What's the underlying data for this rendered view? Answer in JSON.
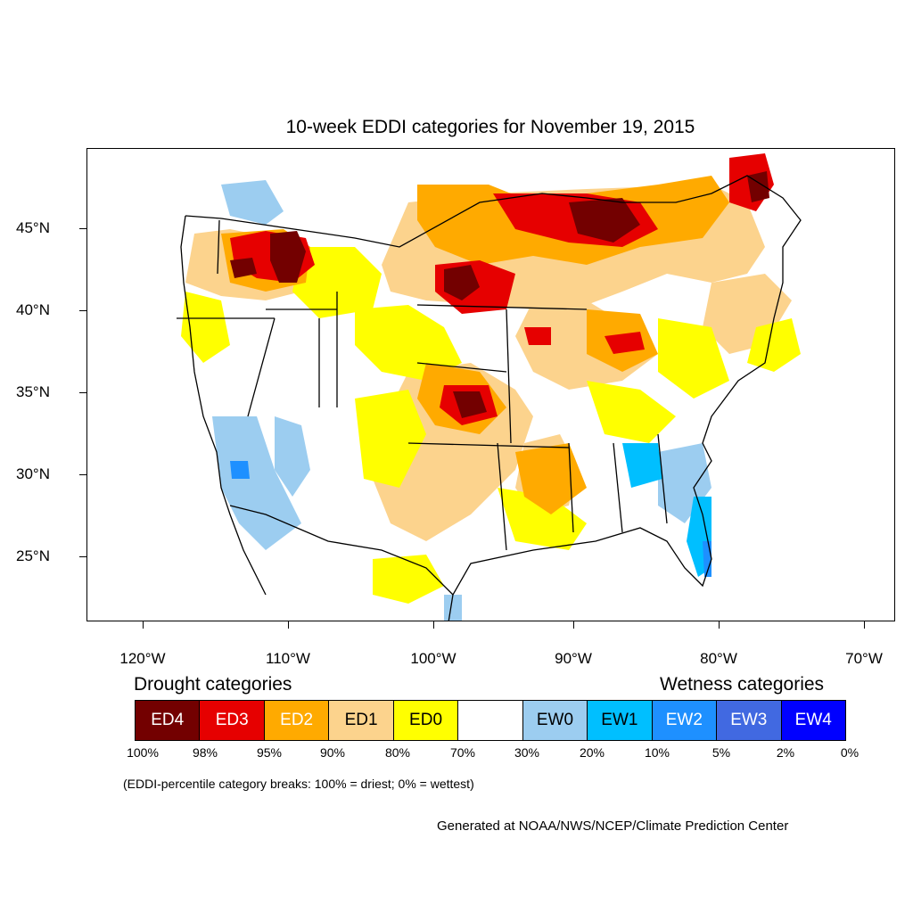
{
  "title": "10-week EDDI categories for November 19, 2015",
  "latitude_labels": [
    "45°N",
    "40°N",
    "35°N",
    "30°N",
    "25°N"
  ],
  "longitude_labels": [
    "120°W",
    "110°W",
    "100°W",
    "90°W",
    "80°W",
    "70°W"
  ],
  "legend": {
    "drought_heading": "Drought categories",
    "wetness_heading": "Wetness categories",
    "categories": [
      {
        "label": "ED4",
        "color": "#730000",
        "text_color": "#ffffff"
      },
      {
        "label": "ED3",
        "color": "#e60000",
        "text_color": "#ffffff"
      },
      {
        "label": "ED2",
        "color": "#ffaa00",
        "text_color": "#ffffff"
      },
      {
        "label": "ED1",
        "color": "#fcd38d",
        "text_color": "#000000"
      },
      {
        "label": "ED0",
        "color": "#ffff00",
        "text_color": "#000000"
      },
      {
        "label": "",
        "color": "#ffffff",
        "text_color": "#000000"
      },
      {
        "label": "EW0",
        "color": "#9ccdf0",
        "text_color": "#000000"
      },
      {
        "label": "EW1",
        "color": "#00bfff",
        "text_color": "#000000"
      },
      {
        "label": "EW2",
        "color": "#1e90ff",
        "text_color": "#ffffff"
      },
      {
        "label": "EW3",
        "color": "#4169e1",
        "text_color": "#ffffff"
      },
      {
        "label": "EW4",
        "color": "#0000ff",
        "text_color": "#ffffff"
      }
    ],
    "percentiles": [
      "100%",
      "98%",
      "95%",
      "90%",
      "80%",
      "70%",
      "30%",
      "20%",
      "10%",
      "5%",
      "2%",
      "0%"
    ]
  },
  "note": "(EDDI-percentile category breaks: 100% = driest; 0% = wettest)",
  "credit": "Generated at NOAA/NWS/NCEP/Climate Prediction Center"
}
